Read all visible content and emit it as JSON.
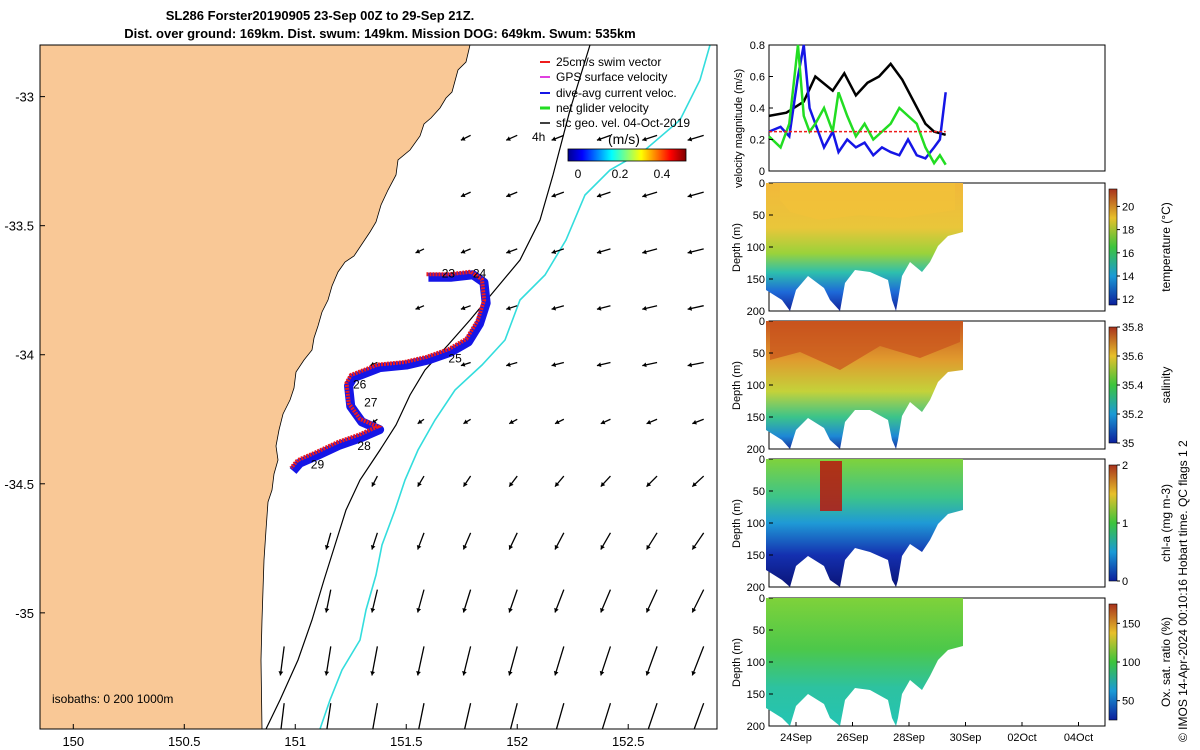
{
  "title": {
    "line1": "SL286 Forster20190905 23-Sep 00Z to 29-Sep 21Z.",
    "line2": "Dist. over ground: 169km. Dist. swum: 149km. Mission DOG: 649km. Swum: 535km"
  },
  "credit": "© IMOS 14-Apr-2024 00:10:16 Hobart time. QC flags 1  2",
  "colors": {
    "land": "#f9c896",
    "gps_track": "#ee1c1c",
    "dive_current": "#1515e6",
    "net_glider": "#22dd22",
    "geo_velocity": "#000000",
    "isobath_200": "#000000",
    "isobath_1000": "#33dddd"
  },
  "chart_data": [
    {
      "type": "map",
      "xlim": [
        149.85,
        152.9
      ],
      "ylim": [
        -35.45,
        -32.8
      ],
      "xticks": [
        "150",
        "150.5",
        "151",
        "151.5",
        "152",
        "152.5"
      ],
      "yticks": [
        "-33",
        "-33.5",
        "-34",
        "-34.5",
        "-35"
      ],
      "legend": [
        "25cm/s swim vector",
        "GPS surface velocity",
        "dive-avg current veloc.",
        "net glider velocity",
        "sfc geo. vel. 04-Oct-2019"
      ],
      "colorbar": {
        "label": "(m/s)",
        "ticks": [
          "0",
          "0.2",
          "0.4"
        ],
        "range": [
          0,
          0.5
        ]
      },
      "time_label": "4h",
      "isobaths_label": "isobaths: 0   200  1000m",
      "track": [
        [
          151.6,
          -33.7
        ],
        [
          151.7,
          -33.7
        ],
        [
          151.8,
          -33.69
        ],
        [
          151.85,
          -33.72
        ],
        [
          151.86,
          -33.8
        ],
        [
          151.83,
          -33.88
        ],
        [
          151.78,
          -33.95
        ],
        [
          151.7,
          -33.99
        ],
        [
          151.6,
          -34.02
        ],
        [
          151.5,
          -34.04
        ],
        [
          151.38,
          -34.05
        ],
        [
          151.26,
          -34.09
        ],
        [
          151.24,
          -34.12
        ],
        [
          151.25,
          -34.2
        ],
        [
          151.3,
          -34.26
        ],
        [
          151.38,
          -34.29
        ],
        [
          151.3,
          -34.32
        ],
        [
          151.2,
          -34.35
        ],
        [
          151.1,
          -34.39
        ],
        [
          151.02,
          -34.42
        ],
        [
          150.99,
          -34.45
        ]
      ],
      "day_labels": [
        {
          "text": "23",
          "lon": 151.66,
          "lat": -33.7
        },
        {
          "text": "24",
          "lon": 151.8,
          "lat": -33.7
        },
        {
          "text": "25",
          "lon": 151.69,
          "lat": -34.03
        },
        {
          "text": "26",
          "lon": 151.26,
          "lat": -34.13
        },
        {
          "text": "27",
          "lon": 151.31,
          "lat": -34.2
        },
        {
          "text": "28",
          "lon": 151.28,
          "lat": -34.37
        },
        {
          "text": "29",
          "lon": 151.07,
          "lat": -34.44
        }
      ]
    },
    {
      "type": "line",
      "ylabel": "velocity magnitude (m/s)",
      "ylim": [
        0,
        0.8
      ],
      "yticks": [
        "0",
        "0.2",
        "0.4",
        "0.6",
        "0.8"
      ],
      "xlim": [
        23.6,
        35.2
      ],
      "series": [
        {
          "color": "#000000",
          "x": [
            23.6,
            24.2,
            24.8,
            25.2,
            25.8,
            26.2,
            26.6,
            27.0,
            27.4,
            27.8,
            28.2,
            28.6,
            29.0,
            29.3,
            29.7
          ],
          "values": [
            0.35,
            0.37,
            0.44,
            0.6,
            0.51,
            0.62,
            0.48,
            0.56,
            0.6,
            0.68,
            0.58,
            0.44,
            0.3,
            0.25,
            0.23
          ]
        },
        {
          "color": "#1515e6",
          "x": [
            23.6,
            24.0,
            24.3,
            24.6,
            24.8,
            25.0,
            25.2,
            25.5,
            25.8,
            26.0,
            26.3,
            26.6,
            26.9,
            27.2,
            27.5,
            27.8,
            28.1,
            28.4,
            28.7,
            29.0,
            29.3,
            29.5,
            29.7
          ],
          "values": [
            0.25,
            0.28,
            0.22,
            0.6,
            0.9,
            0.4,
            0.3,
            0.15,
            0.25,
            0.12,
            0.2,
            0.15,
            0.18,
            0.1,
            0.15,
            0.12,
            0.1,
            0.2,
            0.1,
            0.08,
            0.15,
            0.2,
            0.5
          ]
        },
        {
          "color": "#22dd22",
          "x": [
            23.6,
            24.0,
            24.3,
            24.6,
            24.8,
            25.0,
            25.2,
            25.5,
            25.8,
            26.0,
            26.3,
            26.6,
            26.9,
            27.2,
            27.5,
            27.8,
            28.1,
            28.4,
            28.7,
            29.0,
            29.3,
            29.5,
            29.7
          ],
          "values": [
            0.22,
            0.15,
            0.3,
            0.8,
            0.35,
            0.25,
            0.3,
            0.4,
            0.25,
            0.5,
            0.35,
            0.22,
            0.3,
            0.2,
            0.25,
            0.3,
            0.4,
            0.35,
            0.3,
            0.15,
            0.05,
            0.1,
            0.04
          ]
        },
        {
          "color": "#ee1c1c",
          "x": [
            23.6,
            29.7
          ],
          "values": [
            0.25,
            0.25
          ]
        }
      ]
    },
    {
      "type": "heatmap",
      "ylabel": "Depth (m)",
      "colorbar_label": "temperature (°C)",
      "cbar_ticks": [
        "12",
        "14",
        "16",
        "18",
        "20"
      ],
      "cbar_range": [
        11.5,
        21.5
      ],
      "yticks": [
        "0",
        "50",
        "100",
        "150",
        "200"
      ]
    },
    {
      "type": "heatmap",
      "ylabel": "Depth (m)",
      "colorbar_label": "salinity",
      "cbar_ticks": [
        "35",
        "35.2",
        "35.4",
        "35.6",
        "35.8"
      ],
      "cbar_range": [
        35.0,
        35.8
      ],
      "yticks": [
        "0",
        "50",
        "100",
        "150",
        "200"
      ]
    },
    {
      "type": "heatmap",
      "ylabel": "Depth (m)",
      "colorbar_label": "chl-a (mg m-3)",
      "cbar_ticks": [
        "0",
        "1",
        "2"
      ],
      "cbar_range": [
        0,
        2
      ],
      "yticks": [
        "0",
        "50",
        "100",
        "150",
        "200"
      ]
    },
    {
      "type": "heatmap",
      "ylabel": "Depth (m)",
      "colorbar_label": "Ox. sat. ratio (%)",
      "cbar_ticks": [
        "50",
        "100",
        "150"
      ],
      "cbar_range": [
        25,
        175
      ],
      "yticks": [
        "0",
        "50",
        "100",
        "150",
        "200"
      ],
      "xticks": [
        "24Sep",
        "26Sep",
        "28Sep",
        "30Sep",
        "02Oct",
        "04Oct"
      ]
    }
  ]
}
